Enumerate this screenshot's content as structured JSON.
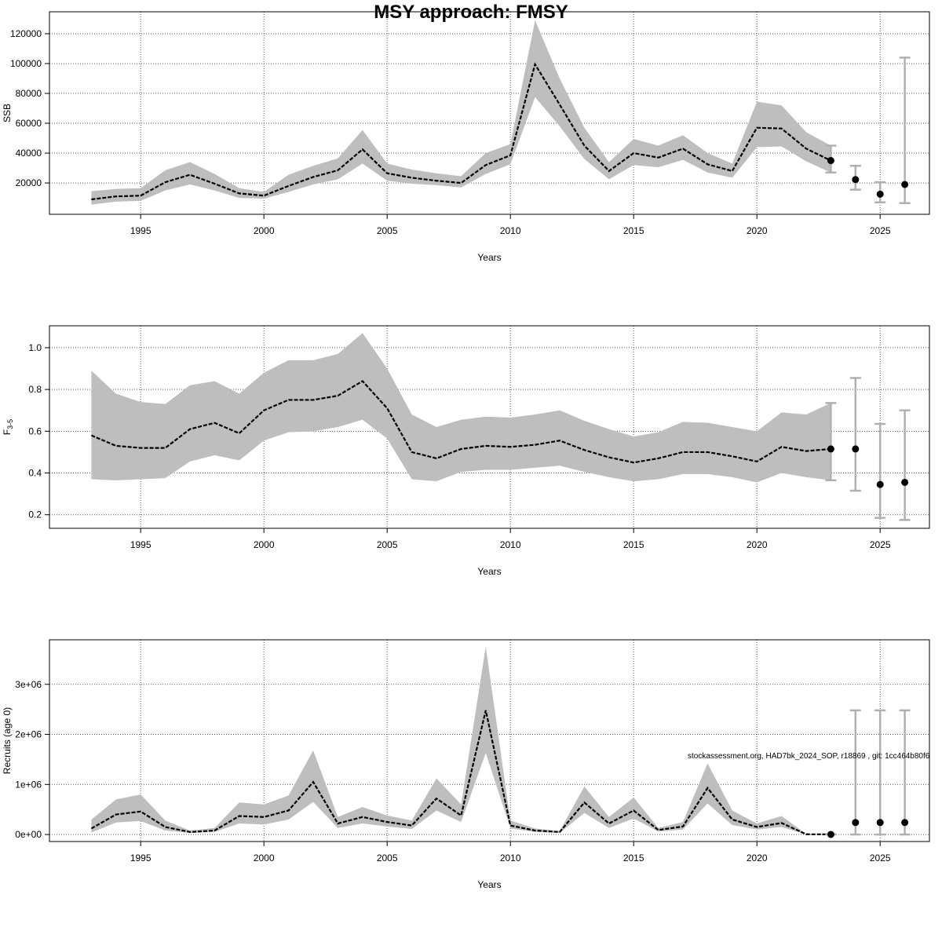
{
  "title": "MSY approach: FMSY",
  "footer_note": "stockassessment.org, HAD7bk_2024_SOP, r18869 , git: 1cc464b80f6",
  "colors": {
    "band": "#bebebe",
    "line": "#000000",
    "errorbar": "#b0b0b0",
    "grid": "#555555"
  },
  "chart_data": [
    {
      "type": "line",
      "title": "MSY approach: FMSY",
      "xlabel": "Years",
      "ylabel": "SSB",
      "xlim": [
        1991.3,
        2027.0
      ],
      "ylim": [
        -1000,
        134700
      ],
      "xticks": [
        1995,
        2000,
        2005,
        2010,
        2015,
        2020,
        2025
      ],
      "yticks": [
        20000,
        40000,
        60000,
        80000,
        100000,
        120000
      ],
      "ytick_labels": [
        "20000",
        "40000",
        "60000",
        "80000",
        "100000",
        "120000"
      ],
      "grid": true,
      "x": [
        1993,
        1994,
        1995,
        1996,
        1997,
        1998,
        1999,
        2000,
        2001,
        2002,
        2003,
        2004,
        2005,
        2006,
        2007,
        2008,
        2009,
        2010,
        2011,
        2012,
        2013,
        2014,
        2015,
        2016,
        2017,
        2018,
        2019,
        2020,
        2021,
        2022,
        2023
      ],
      "estimate": [
        9000,
        11000,
        11500,
        20500,
        25500,
        19500,
        13000,
        11500,
        18000,
        24000,
        28500,
        42500,
        26500,
        23500,
        21500,
        20000,
        32000,
        38500,
        99500,
        72500,
        45000,
        28000,
        40000,
        37000,
        43000,
        32500,
        28000,
        57000,
        56500,
        43000,
        35000
      ],
      "upper": [
        14500,
        16000,
        16500,
        28500,
        34000,
        26000,
        16500,
        14000,
        25500,
        31500,
        36500,
        55500,
        33000,
        29000,
        26500,
        24500,
        40000,
        46000,
        129000,
        90000,
        57000,
        34000,
        49500,
        45000,
        52000,
        40000,
        33000,
        74500,
        72000,
        54000,
        45000
      ],
      "lower": [
        5500,
        7500,
        8000,
        15000,
        19000,
        15000,
        10000,
        9500,
        14000,
        19000,
        22500,
        33000,
        21500,
        19500,
        18500,
        17000,
        26000,
        32500,
        77500,
        58000,
        36000,
        22500,
        32000,
        30500,
        35500,
        27000,
        23500,
        44000,
        44500,
        34500,
        27000
      ],
      "forecast": [
        {
          "year": 2023,
          "value": 35000,
          "low": 27000,
          "high": 45000
        },
        {
          "year": 2024,
          "value": 22300,
          "low": 15500,
          "high": 31500
        },
        {
          "year": 2025,
          "value": 12500,
          "low": 7000,
          "high": 20500
        },
        {
          "year": 2026,
          "value": 19000,
          "low": 6500,
          "high": 104000
        }
      ]
    },
    {
      "type": "line",
      "xlabel": "Years",
      "ylabel": "F",
      "ylabel_sub": "3-5",
      "xlim": [
        1991.3,
        2027.0
      ],
      "ylim": [
        0.135,
        1.105
      ],
      "xticks": [
        1995,
        2000,
        2005,
        2010,
        2015,
        2020,
        2025
      ],
      "yticks": [
        0.2,
        0.4,
        0.6,
        0.8,
        1.0
      ],
      "ytick_labels": [
        "0.2",
        "0.4",
        "0.6",
        "0.8",
        "1.0"
      ],
      "grid": true,
      "x": [
        1993,
        1994,
        1995,
        1996,
        1997,
        1998,
        1999,
        2000,
        2001,
        2002,
        2003,
        2004,
        2005,
        2006,
        2007,
        2008,
        2009,
        2010,
        2011,
        2012,
        2013,
        2014,
        2015,
        2016,
        2017,
        2018,
        2019,
        2020,
        2021,
        2022,
        2023
      ],
      "estimate": [
        0.58,
        0.53,
        0.52,
        0.52,
        0.61,
        0.64,
        0.59,
        0.7,
        0.75,
        0.75,
        0.77,
        0.84,
        0.71,
        0.5,
        0.47,
        0.515,
        0.53,
        0.525,
        0.535,
        0.555,
        0.51,
        0.475,
        0.45,
        0.47,
        0.5,
        0.5,
        0.48,
        0.455,
        0.525,
        0.505,
        0.515
      ],
      "upper": [
        0.89,
        0.78,
        0.74,
        0.73,
        0.82,
        0.84,
        0.78,
        0.88,
        0.94,
        0.94,
        0.97,
        1.07,
        0.9,
        0.68,
        0.62,
        0.655,
        0.67,
        0.665,
        0.68,
        0.7,
        0.65,
        0.61,
        0.575,
        0.595,
        0.645,
        0.64,
        0.62,
        0.6,
        0.69,
        0.68,
        0.735
      ],
      "lower": [
        0.37,
        0.365,
        0.37,
        0.375,
        0.455,
        0.485,
        0.46,
        0.555,
        0.595,
        0.6,
        0.62,
        0.655,
        0.565,
        0.37,
        0.36,
        0.405,
        0.415,
        0.415,
        0.425,
        0.435,
        0.405,
        0.38,
        0.36,
        0.37,
        0.395,
        0.395,
        0.38,
        0.355,
        0.4,
        0.38,
        0.365
      ],
      "forecast": [
        {
          "year": 2023,
          "value": 0.515,
          "low": 0.365,
          "high": 0.735
        },
        {
          "year": 2024,
          "value": 0.515,
          "low": 0.315,
          "high": 0.855
        },
        {
          "year": 2025,
          "value": 0.345,
          "low": 0.185,
          "high": 0.635
        },
        {
          "year": 2026,
          "value": 0.355,
          "low": 0.175,
          "high": 0.7
        }
      ]
    },
    {
      "type": "line",
      "xlabel": "Years",
      "ylabel": "Recruits (age 0)",
      "xlim": [
        1991.3,
        2027.0
      ],
      "ylim": [
        -140000,
        3890000
      ],
      "xticks": [
        1995,
        2000,
        2005,
        2010,
        2015,
        2020,
        2025
      ],
      "yticks": [
        0,
        1000000,
        2000000,
        3000000
      ],
      "ytick_labels": [
        "0e+00",
        "1e+06",
        "2e+06",
        "3e+06"
      ],
      "grid": true,
      "x": [
        1993,
        1994,
        1995,
        1996,
        1997,
        1998,
        1999,
        2000,
        2001,
        2002,
        2003,
        2004,
        2005,
        2006,
        2007,
        2008,
        2009,
        2010,
        2011,
        2012,
        2013,
        2014,
        2015,
        2016,
        2017,
        2018,
        2019,
        2020,
        2021,
        2022,
        2023
      ],
      "estimate": [
        120000,
        400000,
        460000,
        150000,
        50000,
        80000,
        370000,
        350000,
        480000,
        1050000,
        220000,
        350000,
        250000,
        180000,
        720000,
        380000,
        2480000,
        180000,
        80000,
        50000,
        640000,
        220000,
        480000,
        90000,
        160000,
        930000,
        300000,
        150000,
        230000,
        5000,
        2000
      ],
      "upper": [
        300000,
        700000,
        800000,
        280000,
        80000,
        130000,
        640000,
        600000,
        780000,
        1680000,
        350000,
        550000,
        380000,
        280000,
        1120000,
        600000,
        3750000,
        280000,
        120000,
        70000,
        960000,
        350000,
        740000,
        130000,
        250000,
        1420000,
        480000,
        220000,
        370000,
        10000,
        8000
      ],
      "lower": [
        40000,
        240000,
        270000,
        80000,
        30000,
        50000,
        220000,
        200000,
        300000,
        650000,
        130000,
        220000,
        160000,
        110000,
        480000,
        250000,
        1630000,
        120000,
        50000,
        30000,
        430000,
        130000,
        320000,
        60000,
        100000,
        620000,
        190000,
        100000,
        150000,
        1000,
        500
      ],
      "forecast": [
        {
          "year": 2023,
          "value": 2000,
          "low": 500,
          "high": 8000
        },
        {
          "year": 2024,
          "value": 240000,
          "low": 0,
          "high": 2480000
        },
        {
          "year": 2025,
          "value": 240000,
          "low": 0,
          "high": 2480000
        },
        {
          "year": 2026,
          "value": 240000,
          "low": 0,
          "high": 2480000
        }
      ]
    }
  ]
}
